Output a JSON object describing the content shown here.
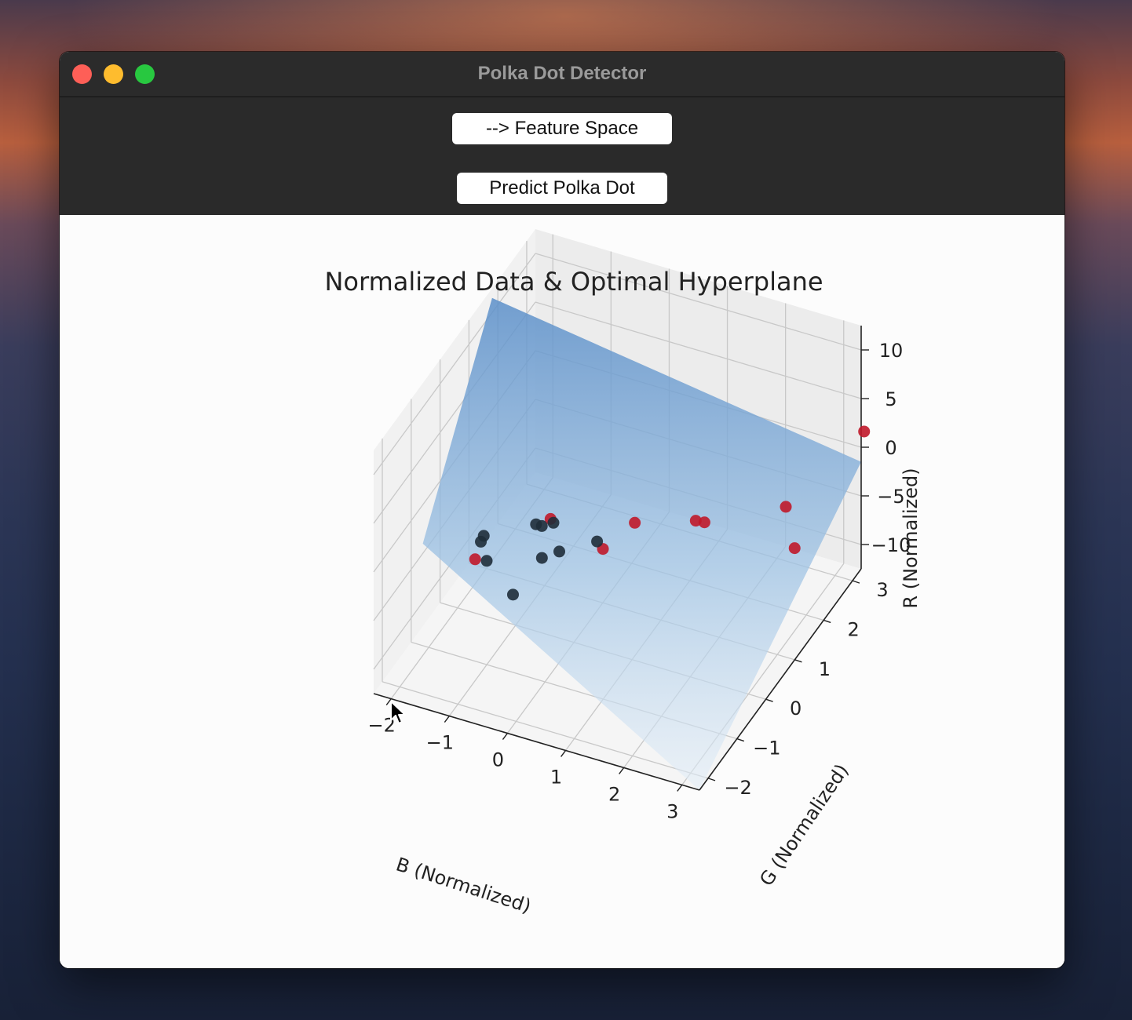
{
  "window": {
    "title": "Polka Dot Detector"
  },
  "toolbar": {
    "feature_space_label": "--> Feature Space",
    "predict_label": "Predict Polka Dot"
  },
  "chart_data": {
    "type": "scatter3d",
    "title": "Normalized Data & Optimal Hyperplane",
    "xlabel": "B (Normalized)",
    "ylabel": "G (Normalized)",
    "zlabel": "R (Normalized)",
    "x_ticks": [
      "−2",
      "−1",
      "0",
      "1",
      "2",
      "3"
    ],
    "y_ticks": [
      "−2",
      "−1",
      "0",
      "1",
      "2",
      "3"
    ],
    "z_ticks": [
      "−10",
      "−5",
      "0",
      "5",
      "10"
    ],
    "xlim": [
      -2.3,
      3.3
    ],
    "ylim": [
      -2.3,
      3.3
    ],
    "zlim": [
      -12.5,
      12.5
    ],
    "grid": true,
    "hyperplane_color": "#5b8fc9",
    "series": [
      {
        "color": "#c0182a",
        "points": [
          {
            "x": -1.4,
            "y": -0.6,
            "z": -4.0
          },
          {
            "x": -0.6,
            "y": 0.4,
            "z": -2.5
          },
          {
            "x": 0.4,
            "y": 0.2,
            "z": -3.0
          },
          {
            "x": 0.6,
            "y": 0.9,
            "z": -2.8
          },
          {
            "x": 1.4,
            "y": 1.4,
            "z": -3.2
          },
          {
            "x": 1.5,
            "y": 1.5,
            "z": -3.6
          },
          {
            "x": 2.7,
            "y": 1.9,
            "z": -1.5
          },
          {
            "x": 3.0,
            "y": 1.6,
            "z": -4.0
          },
          {
            "x": 3.4,
            "y": 3.2,
            "z": 2.2
          }
        ]
      },
      {
        "color": "#1f2d3a",
        "points": [
          {
            "x": -1.5,
            "y": -0.2,
            "z": -4.0
          },
          {
            "x": -1.3,
            "y": -0.4,
            "z": -4.8
          },
          {
            "x": -1.5,
            "y": -0.1,
            "z": -3.8
          },
          {
            "x": -0.8,
            "y": 0.3,
            "z": -3.0
          },
          {
            "x": -0.7,
            "y": 0.3,
            "z": -3.0
          },
          {
            "x": -0.6,
            "y": 0.5,
            "z": -3.3
          },
          {
            "x": -0.5,
            "y": -0.1,
            "z": -4.3
          },
          {
            "x": -0.3,
            "y": 0.1,
            "z": -4.1
          },
          {
            "x": -0.6,
            "y": -0.9,
            "z": -5.0
          },
          {
            "x": 0.2,
            "y": 0.4,
            "z": -3.4
          }
        ]
      }
    ]
  }
}
